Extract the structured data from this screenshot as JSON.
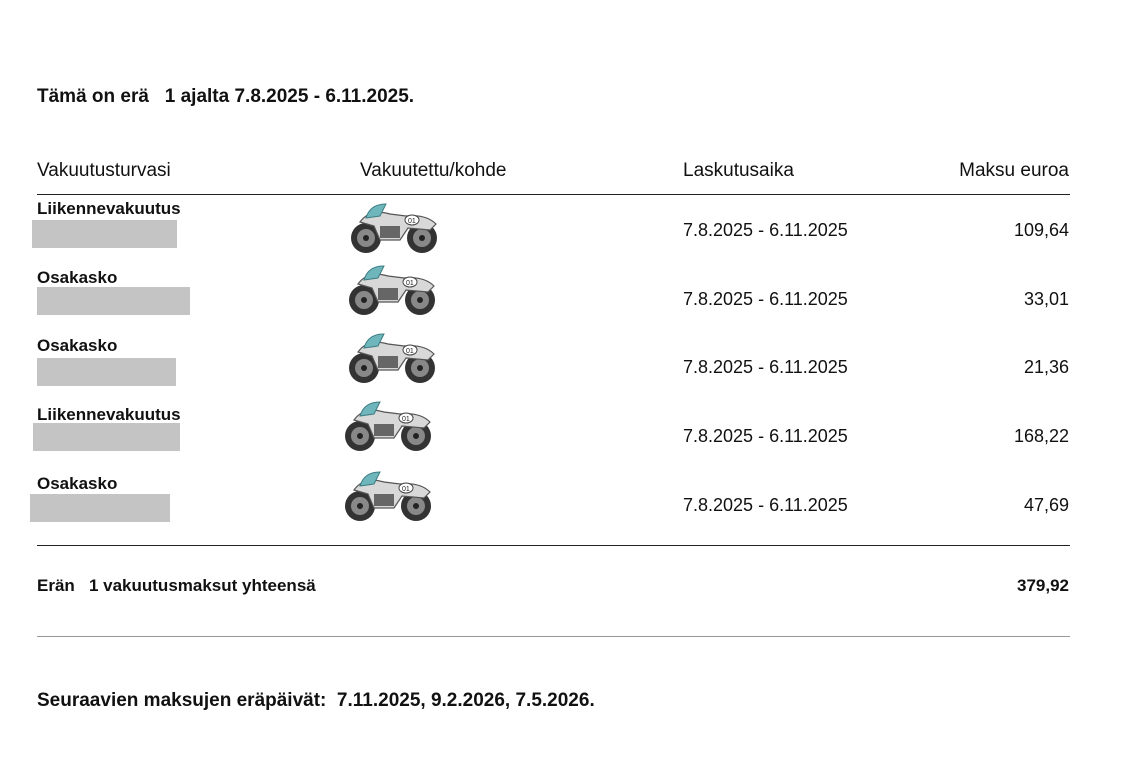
{
  "heading": "Tämä on erä   1 ajalta 7.8.2025 - 6.11.2025.",
  "table": {
    "headers": [
      "Vakuutusturvasi",
      "Vakuutettu/kohde",
      "Laskutusaika",
      "Maksu euroa"
    ],
    "rows": [
      {
        "coverage": "Liikennevakuutus",
        "period": "7.8.2025 - 6.11.2025",
        "amount": "109,64"
      },
      {
        "coverage": "Osakasko",
        "period": "7.8.2025 - 6.11.2025",
        "amount": "33,01"
      },
      {
        "coverage": "Osakasko",
        "period": "7.8.2025 - 6.11.2025",
        "amount": "21,36"
      },
      {
        "coverage": "Liikennevakuutus",
        "period": "7.8.2025 - 6.11.2025",
        "amount": "168,22"
      },
      {
        "coverage": "Osakasko",
        "period": "7.8.2025 - 6.11.2025",
        "amount": "47,69"
      }
    ],
    "total": {
      "label": "Erän   1 vakuutusmaksut yhteensä",
      "amount": "379,92"
    }
  },
  "footer": "Seuraavien maksujen eräpäivät:  7.11.2025, 9.2.2026, 7.5.2026."
}
